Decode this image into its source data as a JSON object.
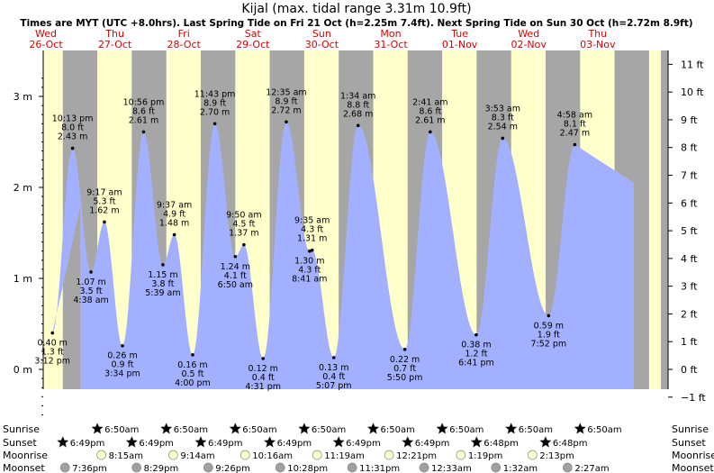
{
  "title": "Kijal (max. tidal range 3.31m 10.9ft)",
  "subtitle": "Times are MYT (UTC +8.0hrs). Last Spring Tide on Fri 21 Oct (h=2.25m 7.4ft). Next Spring Tide on Sun 30 Oct (h=2.72m 8.9ft)",
  "colors": {
    "day": "#ffffcc",
    "night": "#a6a6a6",
    "tide_fill": "#a3b0ff",
    "day_label": "#dd0000",
    "sun_icon": "#c8b62e",
    "sunset_icon": "#d43a2c",
    "moonrise_icon": "#ffffcc",
    "moonset_icon": "#a0a0a0"
  },
  "chart_data": {
    "type": "area",
    "days": [
      {
        "weekday": "Wed",
        "date": "26-Oct"
      },
      {
        "weekday": "Thu",
        "date": "27-Oct"
      },
      {
        "weekday": "Fri",
        "date": "28-Oct"
      },
      {
        "weekday": "Sat",
        "date": "29-Oct"
      },
      {
        "weekday": "Sun",
        "date": "30-Oct"
      },
      {
        "weekday": "Mon",
        "date": "31-Oct"
      },
      {
        "weekday": "Tue",
        "date": "01-Nov"
      },
      {
        "weekday": "Wed",
        "date": "02-Nov"
      },
      {
        "weekday": "Thu",
        "date": "03-Nov"
      }
    ],
    "y_left": {
      "unit": "m",
      "ticks": [
        {
          "v": 3,
          "label": "3 m"
        },
        {
          "v": 2,
          "label": "2 m"
        },
        {
          "v": 1,
          "label": "1 m"
        },
        {
          "v": 0,
          "label": "0 m"
        }
      ],
      "range": [
        -0.55,
        3.31
      ]
    },
    "y_right": {
      "unit": "ft",
      "ticks": [
        "11 ft",
        "10 ft",
        "9 ft",
        "8 ft",
        "7 ft",
        "6 ft",
        "5 ft",
        "4 ft",
        "3 ft",
        "2 ft",
        "1 ft",
        "0 ft",
        "−1 ft"
      ]
    },
    "extremes": [
      {
        "day": 0,
        "hour": 15.2,
        "m": 0.4,
        "lines": [
          "0.40 m",
          "1.3 ft",
          "3:12 pm"
        ],
        "pos": "below"
      },
      {
        "day": 0,
        "hour": 22.22,
        "m": 2.43,
        "lines": [
          "10:13 pm",
          "8.0 ft",
          "2.43 m"
        ],
        "pos": "above"
      },
      {
        "day": 1,
        "hour": 4.63,
        "m": 1.07,
        "lines": [
          "1.07 m",
          "3.5 ft",
          "4:38 am"
        ],
        "pos": "below"
      },
      {
        "day": 1,
        "hour": 9.28,
        "m": 1.62,
        "lines": [
          "9:17 am",
          "5.3 ft",
          "1.62 m"
        ],
        "pos": "above"
      },
      {
        "day": 1,
        "hour": 15.57,
        "m": 0.26,
        "lines": [
          "0.26 m",
          "0.9 ft",
          "3:34 pm"
        ],
        "pos": "below"
      },
      {
        "day": 1,
        "hour": 22.93,
        "m": 2.61,
        "lines": [
          "10:56 pm",
          "8.6 ft",
          "2.61 m"
        ],
        "pos": "above"
      },
      {
        "day": 2,
        "hour": 5.65,
        "m": 1.15,
        "lines": [
          "1.15 m",
          "3.8 ft",
          "5:39 am"
        ],
        "pos": "below"
      },
      {
        "day": 2,
        "hour": 9.62,
        "m": 1.48,
        "lines": [
          "9:37 am",
          "4.9 ft",
          "1.48 m"
        ],
        "pos": "above"
      },
      {
        "day": 2,
        "hour": 16.0,
        "m": 0.16,
        "lines": [
          "0.16 m",
          "0.5 ft",
          "4:00 pm"
        ],
        "pos": "below"
      },
      {
        "day": 2,
        "hour": 23.72,
        "m": 2.7,
        "lines": [
          "11:43 pm",
          "8.9 ft",
          "2.70 m"
        ],
        "pos": "above"
      },
      {
        "day": 3,
        "hour": 6.83,
        "m": 1.24,
        "lines": [
          "1.24 m",
          "4.1 ft",
          "6:50 am"
        ],
        "pos": "below"
      },
      {
        "day": 3,
        "hour": 9.83,
        "m": 1.37,
        "lines": [
          "9:50 am",
          "4.5 ft",
          "1.37 m"
        ],
        "pos": "above"
      },
      {
        "day": 3,
        "hour": 16.52,
        "m": 0.12,
        "lines": [
          "0.12 m",
          "0.4 ft",
          "4:31 pm"
        ],
        "pos": "below"
      },
      {
        "day": 4,
        "hour": 0.58,
        "m": 2.72,
        "lines": [
          "12:35 am",
          "8.9 ft",
          "2.72 m"
        ],
        "pos": "above"
      },
      {
        "day": 4,
        "hour": 8.68,
        "m": 1.3,
        "lines": [
          "1.30 m",
          "4.3 ft",
          "8:41 am"
        ],
        "pos": "below"
      },
      {
        "day": 4,
        "hour": 9.58,
        "m": 1.31,
        "lines": [
          "9:35 am",
          "4.3 ft",
          "1.31 m"
        ],
        "pos": "above"
      },
      {
        "day": 4,
        "hour": 17.12,
        "m": 0.13,
        "lines": [
          "0.13 m",
          "0.4 ft",
          "5:07 pm"
        ],
        "pos": "below"
      },
      {
        "day": 5,
        "hour": 1.57,
        "m": 2.68,
        "lines": [
          "1:34 am",
          "8.8 ft",
          "2.68 m"
        ],
        "pos": "above"
      },
      {
        "day": 5,
        "hour": 17.83,
        "m": 0.22,
        "lines": [
          "0.22 m",
          "0.7 ft",
          "5:50 pm"
        ],
        "pos": "below"
      },
      {
        "day": 6,
        "hour": 2.68,
        "m": 2.61,
        "lines": [
          "2:41 am",
          "8.6 ft",
          "2.61 m"
        ],
        "pos": "above"
      },
      {
        "day": 6,
        "hour": 18.68,
        "m": 0.38,
        "lines": [
          "0.38 m",
          "1.2 ft",
          "6:41 pm"
        ],
        "pos": "below"
      },
      {
        "day": 7,
        "hour": 3.88,
        "m": 2.54,
        "lines": [
          "3:53 am",
          "8.3 ft",
          "2.54 m"
        ],
        "pos": "above"
      },
      {
        "day": 7,
        "hour": 19.87,
        "m": 0.59,
        "lines": [
          "0.59 m",
          "1.9 ft",
          "7:52 pm"
        ],
        "pos": "below"
      },
      {
        "day": 8,
        "hour": 4.97,
        "m": 2.47,
        "lines": [
          "4:58 am",
          "8.1 ft",
          "2.47 m"
        ],
        "pos": "above"
      }
    ],
    "start_level_m": 1.78,
    "end_level_m": 2.05
  },
  "almanac": {
    "rows": [
      {
        "key": "sunrise",
        "label": "Sunrise",
        "icon": "sunrise-icon"
      },
      {
        "key": "sunset",
        "label": "Sunset",
        "icon": "sunset-icon"
      },
      {
        "key": "moonrise",
        "label": "Moonrise",
        "icon": "moonrise-icon"
      },
      {
        "key": "moonset",
        "label": "Moonset",
        "icon": "moonset-icon"
      }
    ],
    "sunrise": [
      {
        "day": 1,
        "hour": 6.83,
        "text": "6:50am"
      },
      {
        "day": 2,
        "hour": 6.83,
        "text": "6:50am"
      },
      {
        "day": 3,
        "hour": 6.83,
        "text": "6:50am"
      },
      {
        "day": 4,
        "hour": 6.83,
        "text": "6:50am"
      },
      {
        "day": 5,
        "hour": 6.83,
        "text": "6:50am"
      },
      {
        "day": 6,
        "hour": 6.83,
        "text": "6:50am"
      },
      {
        "day": 7,
        "hour": 6.83,
        "text": "6:50am"
      },
      {
        "day": 8,
        "hour": 6.83,
        "text": "6:50am"
      }
    ],
    "sunset": [
      {
        "day": 0,
        "hour": 18.82,
        "text": "6:49pm"
      },
      {
        "day": 1,
        "hour": 18.82,
        "text": "6:49pm"
      },
      {
        "day": 2,
        "hour": 18.82,
        "text": "6:49pm"
      },
      {
        "day": 3,
        "hour": 18.82,
        "text": "6:49pm"
      },
      {
        "day": 4,
        "hour": 18.82,
        "text": "6:49pm"
      },
      {
        "day": 5,
        "hour": 18.82,
        "text": "6:49pm"
      },
      {
        "day": 6,
        "hour": 18.8,
        "text": "6:48pm"
      },
      {
        "day": 7,
        "hour": 18.8,
        "text": "6:48pm"
      }
    ],
    "moonrise": [
      {
        "day": 1,
        "hour": 8.25,
        "text": "8:15am"
      },
      {
        "day": 2,
        "hour": 9.23,
        "text": "9:14am"
      },
      {
        "day": 3,
        "hour": 10.27,
        "text": "10:16am"
      },
      {
        "day": 4,
        "hour": 11.32,
        "text": "11:19am"
      },
      {
        "day": 5,
        "hour": 12.35,
        "text": "12:21pm"
      },
      {
        "day": 6,
        "hour": 13.32,
        "text": "1:19pm"
      },
      {
        "day": 7,
        "hour": 14.22,
        "text": "2:13pm"
      }
    ],
    "moonset": [
      {
        "day": 0,
        "hour": 19.6,
        "text": "7:36pm"
      },
      {
        "day": 1,
        "hour": 20.48,
        "text": "8:29pm"
      },
      {
        "day": 2,
        "hour": 21.43,
        "text": "9:26pm"
      },
      {
        "day": 3,
        "hour": 22.47,
        "text": "10:28pm"
      },
      {
        "day": 4,
        "hour": 23.52,
        "text": "11:31pm"
      },
      {
        "day": 6,
        "hour": 0.55,
        "text": "12:33am"
      },
      {
        "day": 7,
        "hour": 1.53,
        "text": "1:32am"
      },
      {
        "day": 8,
        "hour": 2.45,
        "text": "2:27am"
      }
    ]
  }
}
